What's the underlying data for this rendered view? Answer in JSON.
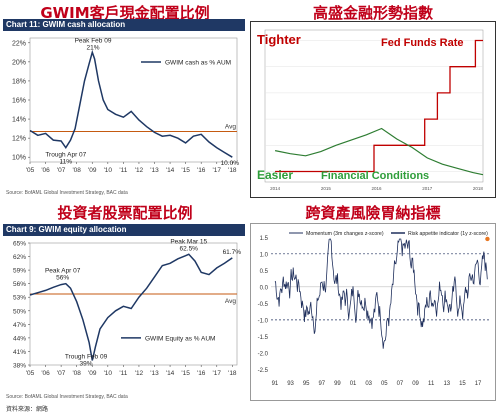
{
  "titles": [
    "GWIM客戶現金配置比例",
    "高盛金融形勢指數",
    "投資者股票配置比例",
    "跨資產風險胃納指標"
  ],
  "footer": "資料來源：網路",
  "chart_data": [
    {
      "type": "line",
      "header": "Chart 11: GWIM cash allocation",
      "source": "Source: BofAML Global Investment Strategy, BAC data",
      "x_ticks": [
        "'05",
        "'06",
        "'07",
        "'08",
        "'09",
        "'10",
        "'11",
        "'12",
        "'13",
        "'14",
        "'15",
        "'16",
        "'17",
        "'18"
      ],
      "y_ticks": [
        "10%",
        "12%",
        "14%",
        "16%",
        "18%",
        "20%",
        "22%"
      ],
      "ylim": [
        9.5,
        22.5
      ],
      "xlim": [
        2005,
        2018.3
      ],
      "x": [
        2005.0,
        2005.5,
        2006.0,
        2006.5,
        2007.0,
        2007.3,
        2007.6,
        2007.9,
        2008.2,
        2008.5,
        2008.8,
        2009.0,
        2009.15,
        2009.4,
        2009.7,
        2010.0,
        2010.5,
        2011.0,
        2011.5,
        2012.0,
        2012.5,
        2013.0,
        2013.5,
        2014.0,
        2014.5,
        2015.0,
        2015.5,
        2016.0,
        2016.5,
        2017.0,
        2017.5,
        2018.0
      ],
      "values": [
        12.8,
        12.3,
        12.5,
        11.8,
        11.7,
        11.0,
        11.8,
        13.0,
        15.5,
        18.0,
        19.8,
        21.0,
        20.3,
        18.0,
        16.0,
        15.0,
        14.5,
        14.2,
        14.8,
        13.9,
        13.2,
        12.6,
        12.2,
        12.3,
        12.0,
        11.5,
        12.2,
        12.4,
        11.6,
        11.0,
        10.5,
        10.0
      ],
      "series": [
        {
          "name": "GWIM cash as % AUM"
        }
      ],
      "avg": 12.7,
      "avg_label": "Avg",
      "annotations": [
        {
          "text": "Peak Feb 09",
          "value": "21%"
        },
        {
          "text": "Trough Apr 07",
          "value": "11%"
        },
        {
          "text": "10.0%"
        }
      ],
      "colors": {
        "line": "#1f3864",
        "avg": "#c55a11"
      }
    },
    {
      "type": "line",
      "left_label": "Tighter",
      "bottom_left_label": "Easier",
      "series": [
        {
          "name": "Fed Funds Rate",
          "color": "#c00000",
          "x": [
            2014.0,
            2015.95,
            2015.95,
            2016.95,
            2016.95,
            2017.2,
            2017.2,
            2017.45,
            2017.45,
            2017.95,
            2017.95,
            2018.1
          ],
          "values": [
            0.25,
            0.25,
            0.5,
            0.5,
            0.75,
            0.75,
            1.0,
            1.0,
            1.25,
            1.25,
            1.5,
            1.5
          ]
        },
        {
          "name": "Financial Conditions",
          "color": "#2e7d32",
          "x": [
            2014.0,
            2014.3,
            2014.6,
            2014.9,
            2015.2,
            2015.5,
            2015.8,
            2016.1,
            2016.4,
            2016.7,
            2017.0,
            2017.3,
            2017.6,
            2017.9,
            2018.1
          ],
          "values": [
            0.45,
            0.42,
            0.4,
            0.44,
            0.5,
            0.55,
            0.6,
            0.66,
            0.56,
            0.48,
            0.38,
            0.32,
            0.28,
            0.24,
            0.22
          ]
        }
      ],
      "xlim": [
        2013.8,
        2018.1
      ],
      "ylim": [
        0.15,
        1.6
      ],
      "x_ticks": [
        "2014",
        "2015",
        "2016",
        "2017",
        "2018"
      ],
      "colors": {
        "frame": "#333333",
        "bg": "#ffffff"
      }
    },
    {
      "type": "line",
      "header": "Chart 9: GWIM equity allocation",
      "source": "Source: BofAML Global Investment Strategy, BAC data",
      "x_ticks": [
        "'05",
        "'06",
        "'07",
        "'08",
        "'09",
        "'10",
        "'11",
        "'12",
        "'13",
        "'14",
        "'15",
        "'16",
        "'17",
        "'18"
      ],
      "y_ticks": [
        "38%",
        "41%",
        "44%",
        "47%",
        "50%",
        "53%",
        "56%",
        "59%",
        "62%",
        "65%"
      ],
      "ylim": [
        38,
        65
      ],
      "xlim": [
        2005,
        2018.3
      ],
      "x": [
        2005.0,
        2005.5,
        2006.0,
        2006.5,
        2007.0,
        2007.3,
        2007.6,
        2008.0,
        2008.4,
        2008.8,
        2009.0,
        2009.2,
        2009.5,
        2010.0,
        2010.5,
        2011.0,
        2011.5,
        2012.0,
        2012.5,
        2013.0,
        2013.5,
        2014.0,
        2014.5,
        2015.0,
        2015.2,
        2015.6,
        2016.0,
        2016.5,
        2017.0,
        2017.5,
        2018.0
      ],
      "values": [
        53.5,
        54.0,
        54.5,
        55.2,
        55.8,
        56.0,
        55.0,
        52.0,
        48.0,
        43.0,
        39.0,
        42.0,
        46.0,
        48.5,
        50.0,
        51.0,
        50.5,
        53.0,
        55.0,
        57.5,
        60.0,
        60.5,
        61.5,
        62.2,
        62.5,
        61.0,
        58.5,
        58.0,
        59.5,
        60.5,
        61.7
      ],
      "series": [
        {
          "name": "GWIM Equity as % AUM"
        }
      ],
      "avg": 53.7,
      "avg_label": "Avg",
      "annotations": [
        {
          "text": "Peak Apr 07",
          "value": "56%"
        },
        {
          "text": "Trough Feb 09",
          "value": "39%"
        },
        {
          "text": "Peak Mar 15",
          "value": "62.5%"
        },
        {
          "text": "61.7%"
        }
      ],
      "colors": {
        "line": "#1f3864",
        "avg": "#c55a11"
      }
    },
    {
      "type": "line",
      "legend": [
        "Momentum (3m changes z-score)",
        "Risk appetite indicator (1y z-score)"
      ],
      "x_ticks": [
        "91",
        "93",
        "95",
        "97",
        "99",
        "01",
        "03",
        "05",
        "07",
        "09",
        "11",
        "13",
        "15",
        "17"
      ],
      "y_ticks": [
        "1.5",
        "1.0",
        "0.5",
        "0.0",
        "-0.5",
        "-1.0",
        "-1.5",
        "-2.0",
        "-2.5"
      ],
      "ylim": [
        -2.7,
        1.6
      ],
      "xlim": [
        1990.5,
        2018.4
      ],
      "reference_lines": [
        1.0,
        -1.0
      ],
      "colors": {
        "line": "#1f2f5c",
        "ref": "#1f2f5c",
        "marker": "#e87722"
      }
    }
  ]
}
